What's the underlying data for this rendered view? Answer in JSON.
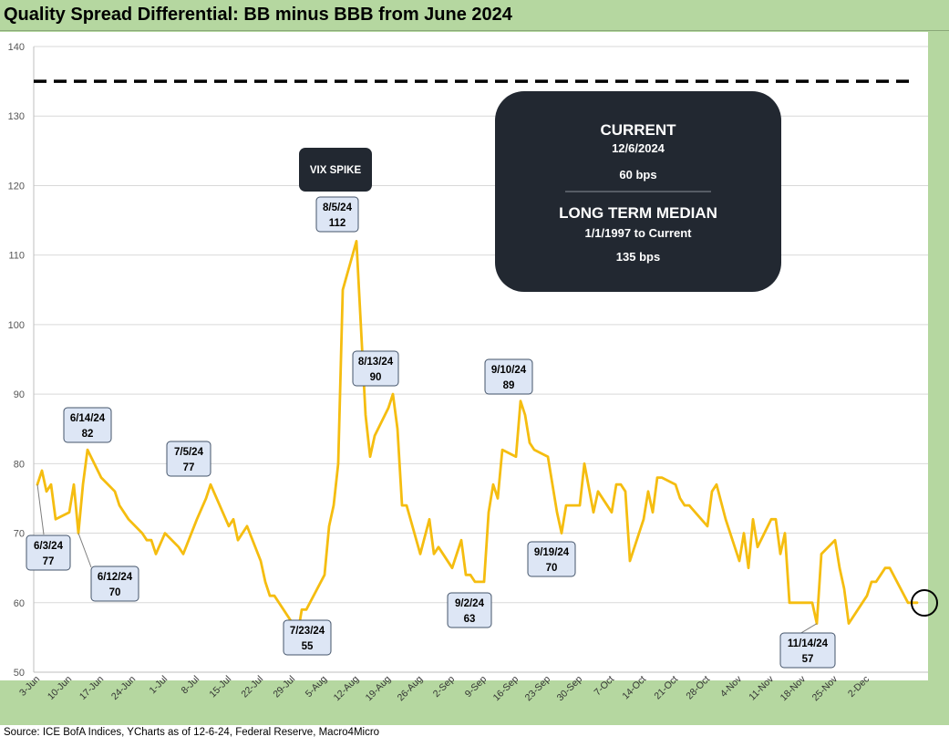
{
  "title": "Quality Spread Differential: BB minus BBB from June 2024",
  "source": "Source: ICE BofA Indices, YCharts as of 12-6-24, Federal Reserve, Macro4Micro",
  "colors": {
    "line": "#f5bd10",
    "frame": "#b5d7a0",
    "box": "#222831",
    "callout_fill": "#dde6f5"
  },
  "info_box": {
    "heading1": "CURRENT",
    "date1": "12/6/2024",
    "value1": "60 bps",
    "heading2": "LONG TERM MEDIAN",
    "date2": "1/1/1997 to Current",
    "value2": "135 bps"
  },
  "vix_label": "VIX SPIKE",
  "chart_data": {
    "type": "line",
    "title": "Quality Spread Differential: BB minus BBB from June 2024",
    "ylim": [
      50,
      140
    ],
    "yticks": [
      50,
      60,
      70,
      80,
      90,
      100,
      110,
      120,
      130,
      140
    ],
    "grid": true,
    "x_tick_labels": [
      "3-Jun",
      "10-Jun",
      "17-Jun",
      "24-Jun",
      "1-Jul",
      "8-Jul",
      "15-Jul",
      "22-Jul",
      "29-Jul",
      "5-Aug",
      "12-Aug",
      "19-Aug",
      "26-Aug",
      "2-Sep",
      "9-Sep",
      "16-Sep",
      "23-Sep",
      "30-Sep",
      "7-Oct",
      "14-Oct",
      "21-Oct",
      "28-Oct",
      "4-Nov",
      "11-Nov",
      "18-Nov",
      "25-Nov",
      "2-Dec"
    ],
    "reference_line": {
      "value": 135,
      "style": "dashed"
    },
    "series": [
      {
        "values": [
          [
            0,
            77
          ],
          [
            1,
            79
          ],
          [
            2,
            76
          ],
          [
            3,
            77
          ],
          [
            4,
            72
          ],
          [
            7,
            73
          ],
          [
            8,
            77
          ],
          [
            9,
            70
          ],
          [
            10,
            77
          ],
          [
            11,
            82
          ],
          [
            14,
            78
          ],
          [
            17,
            76
          ],
          [
            18,
            74
          ],
          [
            20,
            72
          ],
          [
            23,
            70
          ],
          [
            24,
            69
          ],
          [
            25,
            69
          ],
          [
            26,
            67
          ],
          [
            28,
            70
          ],
          [
            31,
            68
          ],
          [
            32,
            67
          ],
          [
            35,
            72
          ],
          [
            37,
            75
          ],
          [
            38,
            77
          ],
          [
            40,
            74
          ],
          [
            42,
            71
          ],
          [
            43,
            72
          ],
          [
            44,
            69
          ],
          [
            46,
            71
          ],
          [
            49,
            66
          ],
          [
            50,
            63
          ],
          [
            51,
            61
          ],
          [
            52,
            61
          ],
          [
            56,
            57
          ],
          [
            57,
            55
          ],
          [
            58,
            59
          ],
          [
            59,
            59
          ],
          [
            63,
            64
          ],
          [
            64,
            71
          ],
          [
            65,
            74
          ],
          [
            66,
            80
          ],
          [
            67,
            105
          ],
          [
            70,
            112
          ],
          [
            72,
            87
          ],
          [
            73,
            81
          ],
          [
            74,
            84
          ],
          [
            77,
            88
          ],
          [
            78,
            90
          ],
          [
            79,
            85
          ],
          [
            80,
            74
          ],
          [
            81,
            74
          ],
          [
            84,
            67
          ],
          [
            86,
            72
          ],
          [
            87,
            67
          ],
          [
            88,
            68
          ],
          [
            91,
            65
          ],
          [
            93,
            69
          ],
          [
            94,
            64
          ],
          [
            95,
            64
          ],
          [
            96,
            63
          ],
          [
            98,
            63
          ],
          [
            99,
            73
          ],
          [
            100,
            77
          ],
          [
            101,
            75
          ],
          [
            102,
            82
          ],
          [
            105,
            81
          ],
          [
            106,
            89
          ],
          [
            107,
            87
          ],
          [
            108,
            83
          ],
          [
            109,
            82
          ],
          [
            112,
            81
          ],
          [
            114,
            73
          ],
          [
            115,
            70
          ],
          [
            116,
            74
          ],
          [
            119,
            74
          ],
          [
            120,
            80
          ],
          [
            122,
            73
          ],
          [
            123,
            76
          ],
          [
            126,
            73
          ],
          [
            127,
            77
          ],
          [
            128,
            77
          ],
          [
            129,
            76
          ],
          [
            130,
            66
          ],
          [
            133,
            72
          ],
          [
            134,
            76
          ],
          [
            135,
            73
          ],
          [
            136,
            78
          ],
          [
            137,
            78
          ],
          [
            140,
            77
          ],
          [
            141,
            75
          ],
          [
            142,
            74
          ],
          [
            143,
            74
          ],
          [
            147,
            71
          ],
          [
            148,
            76
          ],
          [
            149,
            77
          ],
          [
            151,
            72
          ],
          [
            154,
            66
          ],
          [
            155,
            70
          ],
          [
            156,
            65
          ],
          [
            157,
            72
          ],
          [
            158,
            68
          ],
          [
            161,
            72
          ],
          [
            162,
            72
          ],
          [
            163,
            67
          ],
          [
            164,
            70
          ],
          [
            165,
            60
          ],
          [
            168,
            60
          ],
          [
            169,
            60
          ],
          [
            170,
            60
          ],
          [
            171,
            57
          ],
          [
            172,
            67
          ],
          [
            175,
            69
          ],
          [
            176,
            65
          ],
          [
            177,
            62
          ],
          [
            178,
            57
          ],
          [
            182,
            61
          ],
          [
            183,
            63
          ],
          [
            184,
            63
          ],
          [
            185,
            64
          ],
          [
            186,
            65
          ],
          [
            187,
            65
          ],
          [
            191,
            60
          ],
          [
            192,
            60
          ],
          [
            193,
            60
          ]
        ]
      }
    ],
    "annotations": [
      {
        "date": "6/3/24",
        "value": "77"
      },
      {
        "date": "6/12/24",
        "value": "70"
      },
      {
        "date": "6/14/24",
        "value": "82"
      },
      {
        "date": "7/5/24",
        "value": "77"
      },
      {
        "date": "7/23/24",
        "value": "55"
      },
      {
        "date": "8/5/24",
        "value": "112"
      },
      {
        "date": "8/13/24",
        "value": "90"
      },
      {
        "date": "9/2/24",
        "value": "63"
      },
      {
        "date": "9/10/24",
        "value": "89"
      },
      {
        "date": "9/19/24",
        "value": "70"
      },
      {
        "date": "11/14/24",
        "value": "57"
      }
    ]
  }
}
